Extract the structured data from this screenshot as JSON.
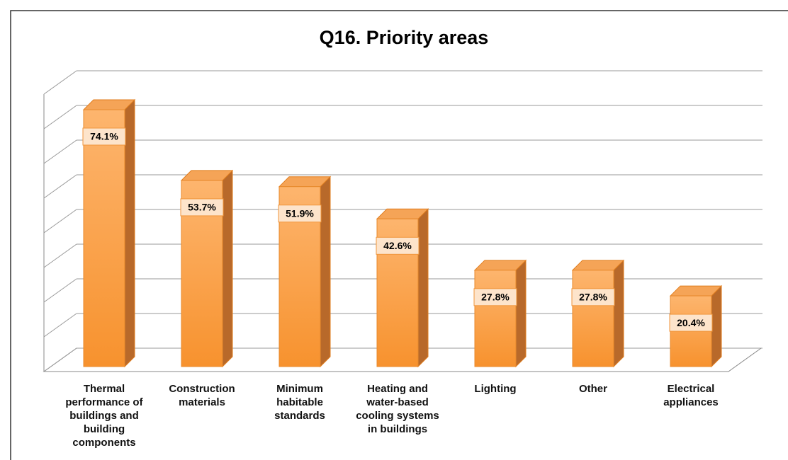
{
  "chart_data": {
    "type": "bar3d",
    "title": "Q16. Priority areas",
    "categories": [
      "Thermal performance of buildings and building components",
      "Construction materials",
      "Minimum habitable standards",
      "Heating and water-based cooling systems in buildings",
      "Lighting",
      "Other",
      "Electrical appliances"
    ],
    "values": [
      74.1,
      53.7,
      51.9,
      42.6,
      27.8,
      27.8,
      20.4
    ],
    "value_labels": [
      "74.1%",
      "53.7%",
      "51.9%",
      "42.6%",
      "27.8%",
      "27.8%",
      "20.4%"
    ],
    "color": "#f7922e",
    "ylim": [
      0,
      80
    ],
    "yticks": [
      0,
      10,
      20,
      30,
      40,
      50,
      60,
      70,
      80
    ],
    "grid": true
  }
}
